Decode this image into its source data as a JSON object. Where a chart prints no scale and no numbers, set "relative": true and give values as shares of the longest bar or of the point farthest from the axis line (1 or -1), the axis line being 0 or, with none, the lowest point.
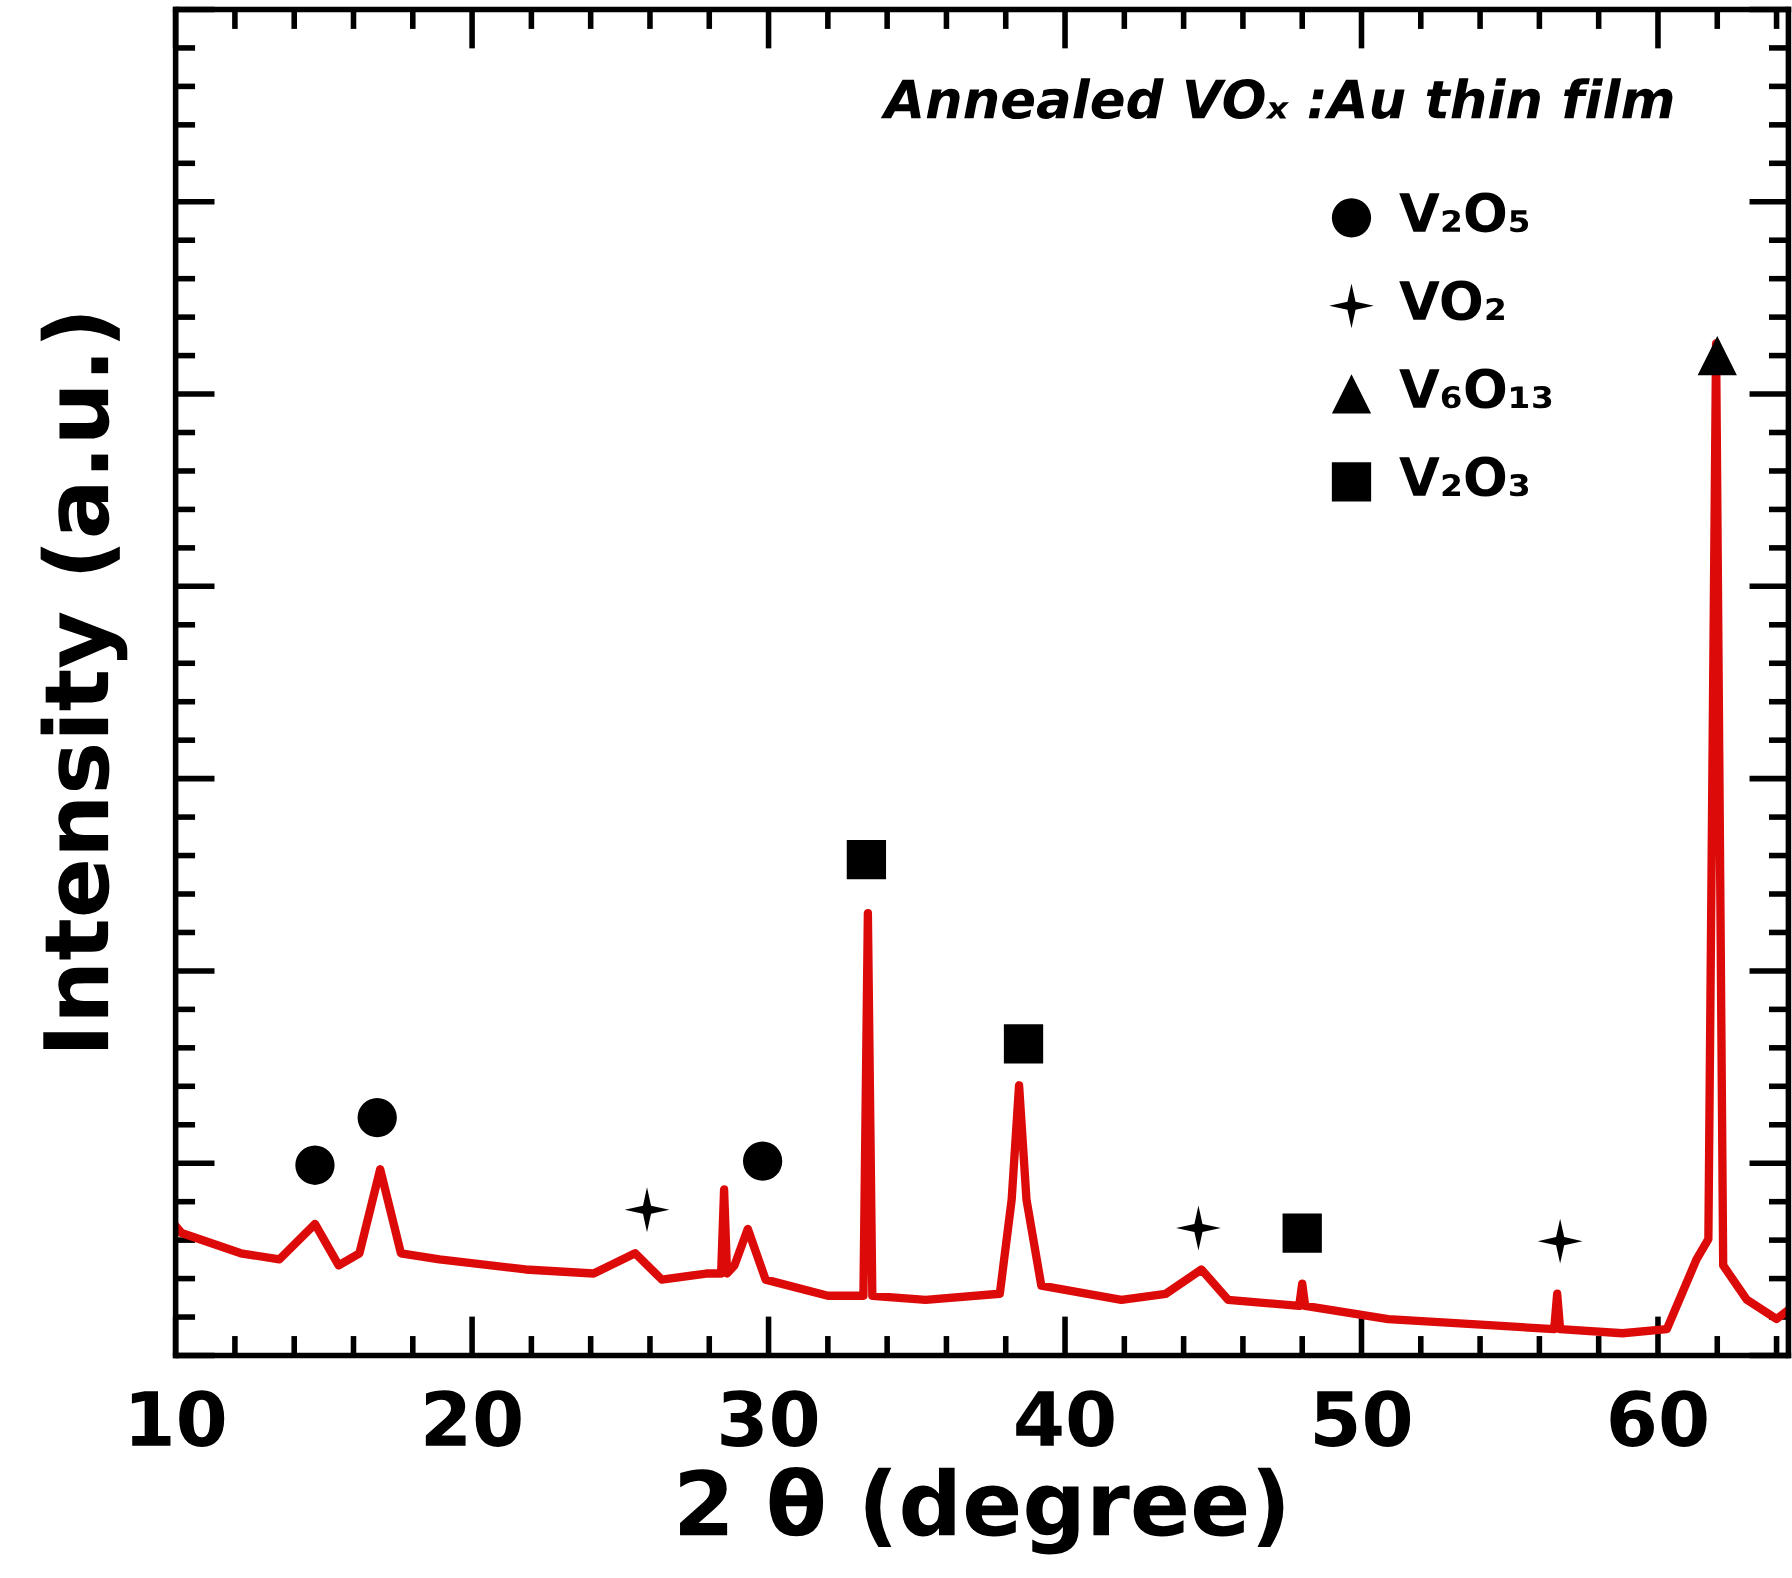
{
  "chart_data": {
    "type": "line",
    "title": "Annealed VOₓ :Au thin film",
    "xlabel": "2 θ (degree)",
    "ylabel": "Intensity (a.u.)",
    "relative": true,
    "xlim": [
      10,
      64.4
    ],
    "xticks": [
      10,
      20,
      30,
      40,
      50,
      60
    ],
    "grid": false,
    "legend": "top right",
    "series": [
      {
        "color": "#dd0a0a",
        "marker": "none",
        "x": [
          10,
          10.2,
          12.2,
          13.5,
          14.7,
          15.5,
          16.2,
          16.9,
          17.6,
          18.9,
          21.8,
          24.1,
          25.5,
          26.4,
          27.9,
          28.4,
          28.5,
          28.6,
          28.85,
          29.3,
          29.9,
          32.0,
          33.2,
          33.35,
          33.5,
          35.3,
          37.8,
          38.2,
          38.45,
          38.7,
          39.2,
          41.9,
          43.4,
          44.6,
          45.5,
          47.9,
          48.0,
          48.1,
          50.9,
          54.3,
          56.5,
          56.6,
          56.7,
          58.8,
          60.3,
          61.3,
          61.7,
          61.96,
          62.2,
          63.0,
          64.0,
          64.4
        ],
        "values": [
          0.128,
          0.121,
          0.101,
          0.095,
          0.13,
          0.089,
          0.101,
          0.184,
          0.101,
          0.095,
          0.085,
          0.081,
          0.101,
          0.075,
          0.081,
          0.081,
          0.164,
          0.081,
          0.089,
          0.125,
          0.075,
          0.059,
          0.059,
          0.437,
          0.059,
          0.055,
          0.061,
          0.154,
          0.267,
          0.154,
          0.069,
          0.055,
          0.061,
          0.085,
          0.055,
          0.049,
          0.071,
          0.049,
          0.036,
          0.03,
          0.026,
          0.061,
          0.026,
          0.022,
          0.026,
          0.095,
          0.115,
          1.0,
          0.089,
          0.055,
          0.036,
          0.045
        ]
      },
      {
        "type": "scatter",
        "name": "V₂O₅",
        "color": "#000000",
        "marker": "circle",
        "x": [
          14.7,
          16.8,
          29.8
        ],
        "values": [
          0.188,
          0.235,
          0.192
        ]
      },
      {
        "type": "scatter",
        "name": "VO₂",
        "color": "#000000",
        "marker": "star",
        "x": [
          25.9,
          44.5,
          56.7
        ],
        "values": [
          0.144,
          0.126,
          0.113
        ]
      },
      {
        "type": "scatter",
        "name": "V₆O₁₃",
        "color": "#000000",
        "marker": "triangle",
        "x": [
          62.0
        ],
        "values": [
          0.988
        ]
      },
      {
        "type": "scatter",
        "name": "V₂O₃",
        "color": "#000000",
        "marker": "square",
        "x": [
          33.3,
          38.6,
          48.0
        ],
        "values": [
          0.49,
          0.308,
          0.121
        ]
      }
    ]
  }
}
